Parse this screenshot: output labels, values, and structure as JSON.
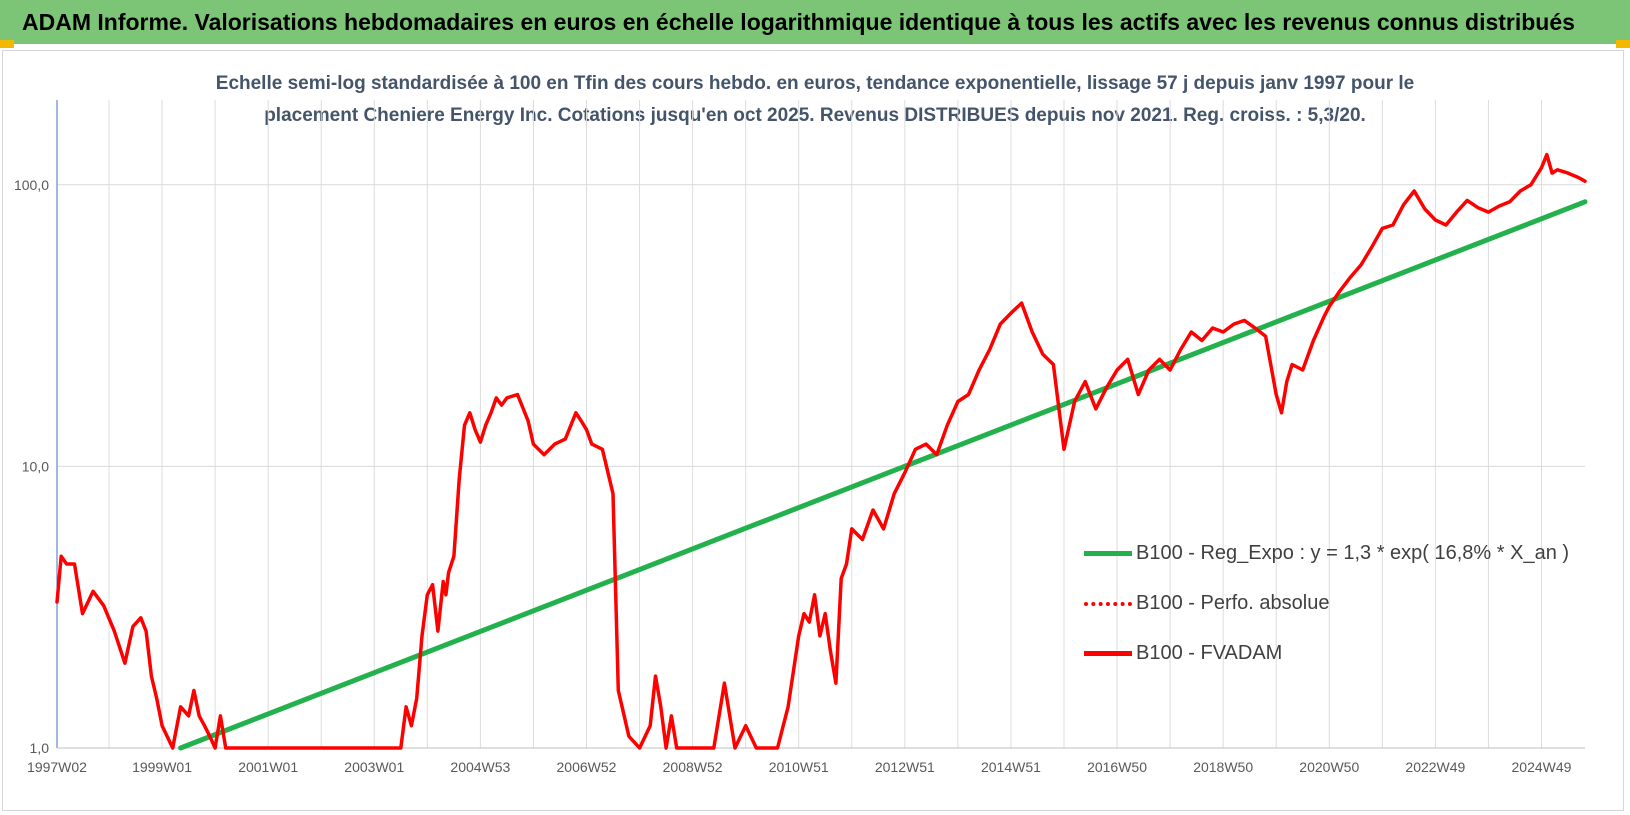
{
  "header": {
    "title": "ADAM Informe. Valorisations hebdomadaires en euros en échelle logarithmique identique à tous les actifs avec les revenus connus distribués"
  },
  "colors": {
    "banner": "#7cc576",
    "corner": "#f5b800",
    "trend": "#22b14c",
    "fvadam": "#ff0000",
    "subtitle": "#44546a"
  },
  "chart_data": {
    "type": "line",
    "title": "Echelle semi-log standardisée à 100 en Tfin des cours hebdo. en euros, tendance exponentielle, lissage 57 j depuis janv 1997 pour le placement Cheniere Energy Inc. Cotations jusqu'en oct 2025. Revenus DISTRIBUES depuis nov 2021. Reg. croiss. : 5,3/20.",
    "title_lines": [
      "Echelle semi-log standardisée à 100 en Tfin des cours hebdo. en euros, tendance exponentielle, lissage 57 j depuis janv 1997 pour le",
      "placement Cheniere Energy Inc. Cotations jusqu'en oct 2025. Revenus DISTRIBUES depuis nov 2021. Reg. croiss. : 5,3/20."
    ],
    "y_scale": "log",
    "ylim": [
      1,
      200
    ],
    "y_ticks": [
      {
        "value": 1,
        "label": "1,0"
      },
      {
        "value": 10,
        "label": "10,0"
      },
      {
        "value": 100,
        "label": "100,0"
      }
    ],
    "x_range": [
      1997.02,
      2025.82
    ],
    "x_ticks": [
      {
        "label": "1997W02",
        "year": 1997.02
      },
      {
        "label": "1999W01",
        "year": 1999.0
      },
      {
        "label": "2001W01",
        "year": 2001.0
      },
      {
        "label": "2003W01",
        "year": 2003.0
      },
      {
        "label": "2004W53",
        "year": 2005.0
      },
      {
        "label": "2006W52",
        "year": 2007.0
      },
      {
        "label": "2008W52",
        "year": 2009.0
      },
      {
        "label": "2010W51",
        "year": 2011.0
      },
      {
        "label": "2012W51",
        "year": 2013.0
      },
      {
        "label": "2014W51",
        "year": 2015.0
      },
      {
        "label": "2016W50",
        "year": 2017.0
      },
      {
        "label": "2018W50",
        "year": 2019.0
      },
      {
        "label": "2020W50",
        "year": 2021.0
      },
      {
        "label": "2022W49",
        "year": 2023.0
      },
      {
        "label": "2024W49",
        "year": 2025.0
      }
    ],
    "grid": true,
    "legend_position": "right",
    "series": [
      {
        "name": "B100 - Reg_Expo : y = 1,3 * exp( 16,8% *  X_an )",
        "style": "solid",
        "color": "#22b14c",
        "x": [
          1999.35,
          2025.82
        ],
        "y": [
          1.0,
          87
        ]
      },
      {
        "name": "B100 - Perfo. absolue",
        "style": "dotted",
        "color": "#ff0000",
        "x": [],
        "y": []
      },
      {
        "name": "B100 - FVADAM",
        "style": "solid",
        "color": "#ff0000",
        "x": [
          1997.02,
          1997.1,
          1997.2,
          1997.35,
          1997.5,
          1997.7,
          1997.9,
          1998.1,
          1998.3,
          1998.45,
          1998.6,
          1998.7,
          1998.8,
          1998.9,
          1999.0,
          1999.2,
          1999.35,
          1999.5,
          1999.6,
          1999.7,
          1999.8,
          1999.9,
          2000.0,
          2000.1,
          2000.2,
          2000.3,
          2000.5,
          2000.7,
          2000.9,
          2003.5,
          2003.6,
          2003.7,
          2003.8,
          2003.9,
          2004.0,
          2004.1,
          2004.2,
          2004.3,
          2004.35,
          2004.4,
          2004.5,
          2004.6,
          2004.7,
          2004.8,
          2004.9,
          2005.0,
          2005.1,
          2005.2,
          2005.3,
          2005.4,
          2005.5,
          2005.7,
          2005.9,
          2006.0,
          2006.2,
          2006.4,
          2006.6,
          2006.8,
          2006.9,
          2007.0,
          2007.1,
          2007.3,
          2007.5,
          2007.6,
          2007.8,
          2008.0,
          2008.2,
          2008.3,
          2008.4,
          2008.5,
          2008.6,
          2008.7,
          2008.8,
          2009.0,
          2009.2,
          2009.4,
          2009.6,
          2009.8,
          2010.0,
          2010.2,
          2010.4,
          2010.6,
          2010.8,
          2011.0,
          2011.1,
          2011.2,
          2011.3,
          2011.4,
          2011.5,
          2011.6,
          2011.7,
          2011.8,
          2011.9,
          2012.0,
          2012.2,
          2012.4,
          2012.6,
          2012.8,
          2013.0,
          2013.2,
          2013.4,
          2013.6,
          2013.8,
          2014.0,
          2014.2,
          2014.4,
          2014.6,
          2014.8,
          2015.0,
          2015.2,
          2015.4,
          2015.6,
          2015.8,
          2016.0,
          2016.2,
          2016.4,
          2016.6,
          2016.8,
          2017.0,
          2017.2,
          2017.4,
          2017.6,
          2017.8,
          2018.0,
          2018.2,
          2018.4,
          2018.6,
          2018.8,
          2019.0,
          2019.2,
          2019.4,
          2019.6,
          2019.8,
          2020.0,
          2020.1,
          2020.2,
          2020.3,
          2020.5,
          2020.7,
          2020.9,
          2021.0,
          2021.2,
          2021.4,
          2021.6,
          2021.8,
          2022.0,
          2022.2,
          2022.4,
          2022.6,
          2022.8,
          2023.0,
          2023.2,
          2023.4,
          2023.6,
          2023.8,
          2024.0,
          2024.2,
          2024.4,
          2024.6,
          2024.8,
          2025.0,
          2025.1,
          2025.2,
          2025.3,
          2025.5,
          2025.7,
          2025.82
        ],
        "y": [
          3.3,
          4.8,
          4.5,
          4.5,
          3.0,
          3.6,
          3.2,
          2.6,
          2.0,
          2.7,
          2.9,
          2.6,
          1.8,
          1.5,
          1.2,
          1.0,
          1.4,
          1.3,
          1.6,
          1.3,
          1.2,
          1.1,
          1.0,
          1.3,
          1.0,
          1.0,
          1.0,
          1.0,
          1.0,
          1.0,
          1.4,
          1.2,
          1.5,
          2.5,
          3.5,
          3.8,
          2.6,
          3.9,
          3.5,
          4.2,
          4.8,
          9.0,
          14.0,
          15.5,
          13.5,
          12.2,
          14.0,
          15.5,
          17.5,
          16.5,
          17.5,
          18.0,
          14.5,
          12.0,
          11.0,
          12.0,
          12.5,
          15.5,
          14.5,
          13.5,
          12.0,
          11.5,
          8.0,
          1.6,
          1.1,
          1.0,
          1.2,
          1.8,
          1.4,
          1.0,
          1.3,
          1.0,
          1.0,
          1.0,
          1.0,
          1.0,
          1.7,
          1.0,
          1.2,
          1.0,
          1.0,
          1.0,
          1.4,
          2.5,
          3.0,
          2.8,
          3.5,
          2.5,
          3.0,
          2.2,
          1.7,
          4.0,
          4.5,
          6.0,
          5.5,
          7.0,
          6.0,
          8.0,
          9.5,
          11.5,
          12.0,
          11.0,
          14.0,
          17.0,
          18.0,
          22.0,
          26.0,
          32.0,
          35.0,
          38.0,
          30.0,
          25.0,
          23.0,
          11.5,
          17.0,
          20.0,
          16.0,
          19.0,
          22.0,
          24.0,
          18.0,
          22.0,
          24.0,
          22.0,
          26.0,
          30.0,
          28.0,
          31.0,
          30.0,
          32.0,
          33.0,
          31.0,
          29.0,
          18.0,
          15.5,
          20.0,
          23.0,
          22.0,
          28.0,
          34.0,
          37.0,
          42.0,
          47.0,
          52.0,
          60.0,
          70.0,
          72.0,
          85.0,
          95.0,
          82.0,
          75.0,
          72.0,
          80.0,
          88.0,
          83.0,
          80.0,
          84.0,
          87.0,
          95.0,
          100.0,
          115.0,
          128.0,
          110.0,
          113.0,
          110.0,
          106.0,
          103.0
        ]
      }
    ]
  }
}
